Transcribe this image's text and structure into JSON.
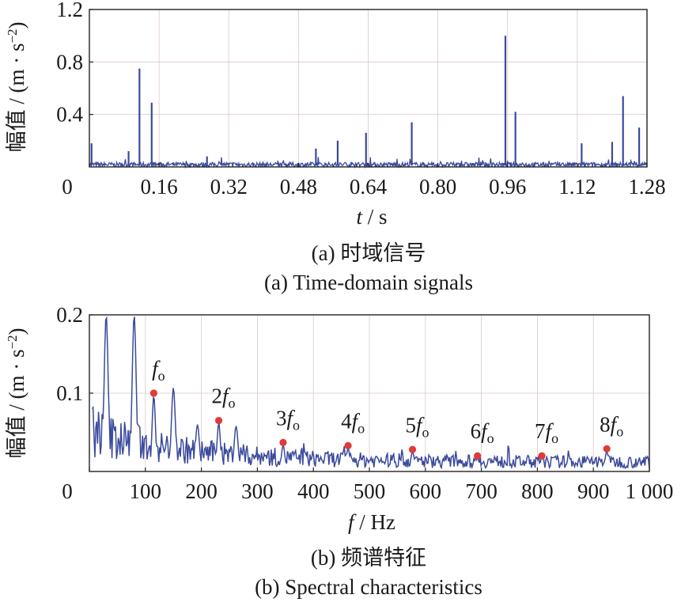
{
  "chart_data": [
    {
      "type": "line",
      "title": "(a)  时域信号",
      "subtitle": "(a)  Time-domain signals",
      "xlabel_var": "t",
      "xlabel_unit": " / s",
      "ylabel_text": "幅值 / (m · s",
      "ylabel_exp": "−2",
      "ylabel_close": ")",
      "xlim": [
        0,
        1.28
      ],
      "ylim": [
        0,
        1.2
      ],
      "xticks": [
        0,
        0.16,
        0.32,
        0.48,
        0.64,
        0.8,
        0.96,
        1.12,
        1.28
      ],
      "xtick_labels": [
        "0",
        "0.16",
        "0.32",
        "0.48",
        "0.64",
        "0.80",
        "0.96",
        "1.12",
        "1.28"
      ],
      "yticks": [
        0.4,
        0.8,
        1.2
      ],
      "ytick_labels": [
        "0.4",
        "0.8",
        "1.2"
      ],
      "grid": true,
      "color": "#3b4a9c",
      "noise_level": 0.05,
      "peaks": [
        {
          "t": 0.005,
          "v": 0.18
        },
        {
          "t": 0.09,
          "v": 0.12
        },
        {
          "t": 0.115,
          "v": 0.75
        },
        {
          "t": 0.143,
          "v": 0.49
        },
        {
          "t": 0.27,
          "v": 0.08
        },
        {
          "t": 0.52,
          "v": 0.14
        },
        {
          "t": 0.57,
          "v": 0.2
        },
        {
          "t": 0.635,
          "v": 0.26
        },
        {
          "t": 0.74,
          "v": 0.34
        },
        {
          "t": 0.955,
          "v": 1.0
        },
        {
          "t": 0.978,
          "v": 0.42
        },
        {
          "t": 1.13,
          "v": 0.18
        },
        {
          "t": 1.2,
          "v": 0.19
        },
        {
          "t": 1.225,
          "v": 0.54
        },
        {
          "t": 1.262,
          "v": 0.3
        }
      ]
    },
    {
      "type": "line",
      "title": "(b)  频谱特征",
      "subtitle": "(b)  Spectral characteristics",
      "xlabel_var": "f",
      "xlabel_unit": " / Hz",
      "ylabel_text": "幅值 / (m · s",
      "ylabel_exp": "−2",
      "ylabel_close": ")",
      "xlim": [
        0,
        1000
      ],
      "ylim": [
        0,
        0.2
      ],
      "xticks": [
        0,
        100,
        200,
        300,
        400,
        500,
        600,
        700,
        800,
        900,
        1000
      ],
      "xtick_labels": [
        "0",
        "100",
        "200",
        "300",
        "400",
        "500",
        "600",
        "700",
        "800",
        "900",
        "1 000"
      ],
      "yticks": [
        0.1,
        0.2
      ],
      "ytick_labels": [
        "0.1",
        "0.2"
      ],
      "grid": true,
      "color": "#3b4a9c",
      "marker_color": "#e03a3a",
      "spectrum_peaks": [
        {
          "f": 30,
          "v": 0.2
        },
        {
          "f": 80,
          "v": 0.2
        },
        {
          "f": 150,
          "v": 0.107
        },
        {
          "f": 193,
          "v": 0.06
        },
        {
          "f": 262,
          "v": 0.058
        }
      ],
      "harmonics": [
        {
          "label": "f",
          "n": "",
          "f": 115,
          "v": 0.1
        },
        {
          "label": "f",
          "n": "2",
          "f": 231,
          "v": 0.065
        },
        {
          "label": "f",
          "n": "3",
          "f": 346,
          "v": 0.037
        },
        {
          "label": "f",
          "n": "4",
          "f": 462,
          "v": 0.033
        },
        {
          "label": "f",
          "n": "5",
          "f": 577,
          "v": 0.028
        },
        {
          "label": "f",
          "n": "6",
          "f": 693,
          "v": 0.02
        },
        {
          "label": "f",
          "n": "7",
          "f": 808,
          "v": 0.02
        },
        {
          "label": "f",
          "n": "8",
          "f": 924,
          "v": 0.029
        }
      ],
      "harmonic_subscript": "o"
    }
  ]
}
